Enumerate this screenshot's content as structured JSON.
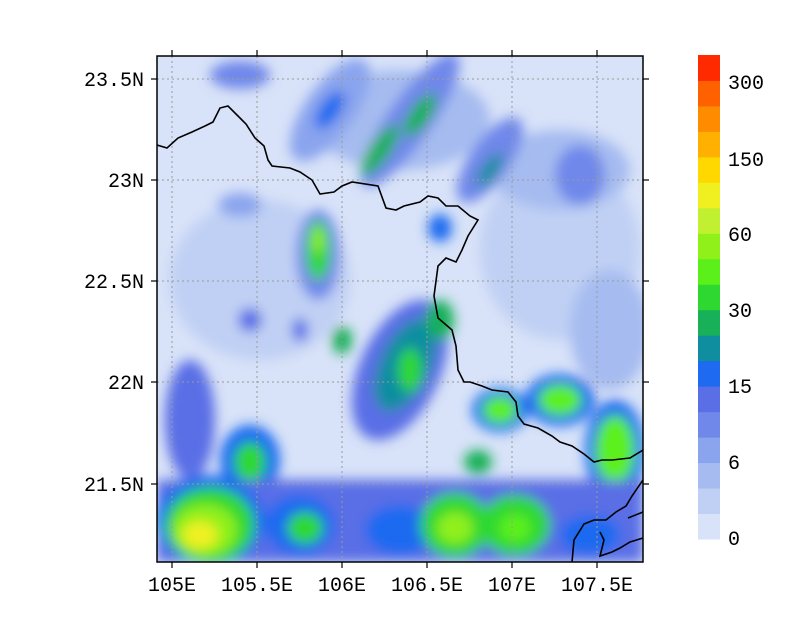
{
  "map": {
    "lat_labels": [
      "23.5N",
      "23N",
      "22.5N",
      "22N",
      "21.5N"
    ],
    "lon_labels": [
      "105E",
      "105.5E",
      "106E",
      "106.5E",
      "107E",
      "107.5E"
    ],
    "border_color": "#000000",
    "grid_color": "#9a9a9a"
  },
  "colorbar": {
    "labels": [
      "300",
      "150",
      "60",
      "30",
      "15",
      "6",
      "0"
    ],
    "colors": [
      "#d8e2f8",
      "#c0d0f4",
      "#a6bcf0",
      "#8aa4ee",
      "#6f88ea",
      "#5a6ee6",
      "#1e6af0",
      "#0f8ea0",
      "#18b058",
      "#2ed830",
      "#5cf01a",
      "#90f01a",
      "#c0f030",
      "#f0f020",
      "#ffd800",
      "#ffb000",
      "#ff8c00",
      "#ff6000",
      "#ff2a00"
    ]
  }
}
